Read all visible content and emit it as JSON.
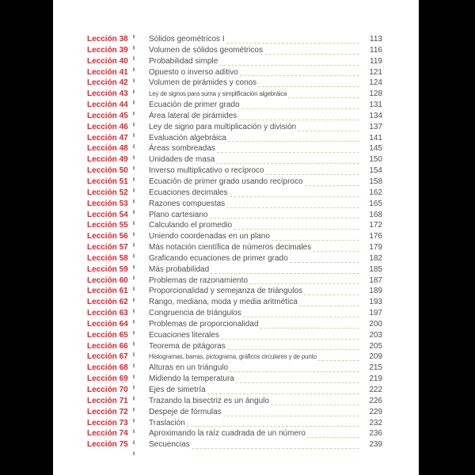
{
  "colors": {
    "edge_black": "#000000",
    "page_white": "#ffffff",
    "lesson_red": "#e2242e",
    "body_text": "#4f4f4f",
    "leader_olive": "#d3d78e",
    "separator_gray": "#9a9a9a"
  },
  "toc": {
    "rows": [
      {
        "lesson": "Lección 38",
        "title": "Sólidos geométricos I",
        "page": "113"
      },
      {
        "lesson": "Lección 39",
        "title": "Volumen de sólidos geométricos",
        "page": "116"
      },
      {
        "lesson": "Lección 40",
        "title": "Probabilidad simple",
        "page": "119"
      },
      {
        "lesson": "Lección 41",
        "title": "Opuesto o inverso aditivo",
        "page": "121"
      },
      {
        "lesson": "Lección 42",
        "title": "Volumen de pirámides y conos",
        "page": "124"
      },
      {
        "lesson": "Lección 43",
        "title": "Ley de signos para suma y simplificación algebráica",
        "page": "128"
      },
      {
        "lesson": "Lección 44",
        "title": "Ecuación de primer grado",
        "page": "131"
      },
      {
        "lesson": "Lección 45",
        "title": "Área lateral de pirámides",
        "page": "134"
      },
      {
        "lesson": "Lección 46",
        "title": "Ley de signo para multiplicación y división",
        "page": "137"
      },
      {
        "lesson": "Lección 47",
        "title": "Evaluación algebráica",
        "page": "141"
      },
      {
        "lesson": "Lección 48",
        "title": "Áreas sombreadas",
        "page": "145"
      },
      {
        "lesson": "Lección 49",
        "title": "Unidades de masa",
        "page": "150"
      },
      {
        "lesson": "Lección 50",
        "title": "Inverso multiplicativo o recíproco",
        "page": "154"
      },
      {
        "lesson": "Lección 51",
        "title": "Ecuación de primer grado usando recíproco",
        "page": "158"
      },
      {
        "lesson": "Lección 52",
        "title": "Ecuaciones decimales",
        "page": "162"
      },
      {
        "lesson": "Lección 53",
        "title": "Razones compuestas",
        "page": "165"
      },
      {
        "lesson": "Lección 54",
        "title": "Plano cartesiano",
        "page": "168"
      },
      {
        "lesson": "Lección 55",
        "title": "Calculando el promedio",
        "page": "172"
      },
      {
        "lesson": "Lección 56",
        "title": "Uniendo coordenadas en un plano",
        "page": "176"
      },
      {
        "lesson": "Lección 57",
        "title": "Más notación científica de números decimales",
        "page": "179"
      },
      {
        "lesson": "Lección 58",
        "title": "Graficando ecuaciones de primer grado",
        "page": "182"
      },
      {
        "lesson": "Lección 59",
        "title": "Más probabilidad",
        "page": "185"
      },
      {
        "lesson": "Lección 60",
        "title": "Problemas de razonamiento",
        "page": "187"
      },
      {
        "lesson": "Lección 61",
        "title": "Proporcionalidad y semejanza de triángulos",
        "page": "189"
      },
      {
        "lesson": "Lección 62",
        "title": "Rango, mediana, moda y media aritmética",
        "page": "193"
      },
      {
        "lesson": "Lección 63",
        "title": "Congruencia de triángulos",
        "page": "197"
      },
      {
        "lesson": "Lección 64",
        "title": "Problemas de proporcionalidad",
        "page": "200"
      },
      {
        "lesson": "Lección 65",
        "title": "Ecuaciones literales",
        "page": "203"
      },
      {
        "lesson": "Lección 66",
        "title": "Teorema de pitágoras",
        "page": "205"
      },
      {
        "lesson": "Lección 67",
        "title": "Histogramas, barras, pictograma, gráficos circulares y de punto",
        "page": "209"
      },
      {
        "lesson": "Lección 68",
        "title": "Alturas en un triángulo",
        "page": "215"
      },
      {
        "lesson": "Lección 69",
        "title": "Midiendo la temperatura",
        "page": "219"
      },
      {
        "lesson": "Lección 70",
        "title": "Ejes de simetría",
        "page": "222"
      },
      {
        "lesson": "Lección 71",
        "title": "Trazando la bisectriz es un ángulo",
        "page": "226"
      },
      {
        "lesson": "Lección 72",
        "title": "Despeje de fórmulas",
        "page": "229"
      },
      {
        "lesson": "Lección 73",
        "title": "Traslación",
        "page": "232"
      },
      {
        "lesson": "Lección 74",
        "title": "Aproximando la raíz cuadrada de un número",
        "page": "236"
      },
      {
        "lesson": "Lección 75",
        "title": "Secuencias",
        "page": "239"
      }
    ]
  }
}
